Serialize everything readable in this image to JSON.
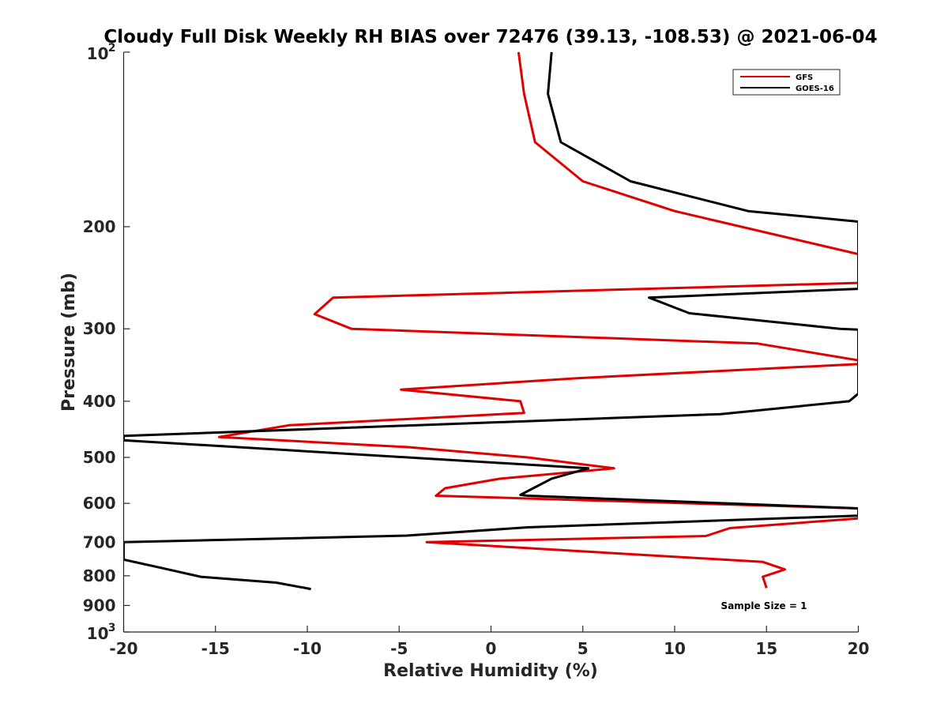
{
  "chart_data": {
    "type": "line",
    "title": "Cloudy Full Disk Weekly RH BIAS over 72476 (39.13, -108.53) @ 2021-06-04",
    "xlabel": "Relative Humidity (%)",
    "ylabel": "Pressure (mb)",
    "xlim": [
      -20,
      20
    ],
    "ylim": [
      100,
      1000
    ],
    "y_scale": "log",
    "y_reversed": true,
    "grid": false,
    "legend_position": "top-right",
    "x_ticks": [
      -20,
      -15,
      -10,
      -5,
      0,
      5,
      10,
      15,
      20
    ],
    "x_tick_labels": [
      "-20",
      "-15",
      "-10",
      "-5",
      "0",
      "5",
      "10",
      "15",
      "20"
    ],
    "y_ticks": [
      200,
      300,
      400,
      500,
      600,
      700,
      800,
      900
    ],
    "y_tick_labels": [
      "200",
      "300",
      "400",
      "500",
      "600",
      "700",
      "800",
      "900"
    ],
    "y_end_labels": [
      {
        "base": "10",
        "exp": "2",
        "value": 100
      },
      {
        "base": "10",
        "exp": "3",
        "value": 1000
      }
    ],
    "annotation": "Sample Size = 1",
    "series": [
      {
        "name": "GFS",
        "color": "#e00000",
        "points": [
          [
            1.5,
            100
          ],
          [
            1.8,
            118
          ],
          [
            2.4,
            143
          ],
          [
            5.0,
            167
          ],
          [
            10.0,
            188
          ],
          [
            20.0,
            223
          ],
          [
            20.0,
            250
          ],
          [
            -8.6,
            265
          ],
          [
            -9.6,
            283
          ],
          [
            -7.6,
            300
          ],
          [
            14.5,
            318
          ],
          [
            20.0,
            340
          ],
          [
            20.0,
            345
          ],
          [
            4.7,
            365
          ],
          [
            -4.9,
            382
          ],
          [
            1.6,
            400
          ],
          [
            1.8,
            419
          ],
          [
            -11.0,
            440
          ],
          [
            -14.8,
            461
          ],
          [
            -4.5,
            480
          ],
          [
            2.0,
            500
          ],
          [
            6.7,
            522
          ],
          [
            0.5,
            544
          ],
          [
            -2.5,
            565
          ],
          [
            -3.0,
            582
          ],
          [
            20.0,
            612
          ],
          [
            20.0,
            637
          ],
          [
            13.0,
            662
          ],
          [
            11.7,
            683
          ],
          [
            -3.5,
            700
          ],
          [
            14.8,
            757
          ],
          [
            16.0,
            780
          ],
          [
            14.8,
            803
          ],
          [
            15.0,
            840
          ]
        ]
      },
      {
        "name": "GOES-16",
        "color": "#000000",
        "points": [
          [
            3.3,
            100
          ],
          [
            3.1,
            118
          ],
          [
            3.8,
            143
          ],
          [
            7.6,
            167
          ],
          [
            14.0,
            188
          ],
          [
            20.0,
            196
          ],
          [
            20.0,
            256
          ],
          [
            8.6,
            265
          ],
          [
            10.8,
            282
          ],
          [
            19.0,
            300
          ],
          [
            20.0,
            301
          ],
          [
            20.0,
            388
          ],
          [
            19.5,
            400
          ],
          [
            12.5,
            421
          ],
          [
            -20.0,
            459
          ],
          [
            -20.0,
            467
          ],
          [
            5.3,
            522
          ],
          [
            3.3,
            544
          ],
          [
            2.3,
            565
          ],
          [
            1.6,
            580
          ],
          [
            2.0,
            582
          ],
          [
            20.0,
            612
          ],
          [
            20.0,
            630
          ],
          [
            2.0,
            660
          ],
          [
            -4.6,
            682
          ],
          [
            -20.0,
            700
          ],
          [
            -20.0,
            750
          ],
          [
            -17.5,
            781
          ],
          [
            -15.8,
            803
          ],
          [
            -11.7,
            822
          ],
          [
            -9.8,
            843
          ]
        ]
      }
    ]
  }
}
